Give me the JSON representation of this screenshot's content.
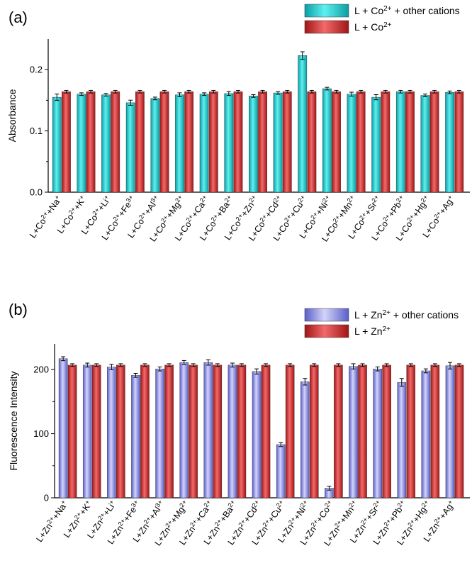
{
  "chart_data": [
    {
      "type": "bar",
      "panel_label": "(a)",
      "ylabel": "Absorbance",
      "ylim": [
        0,
        0.25
      ],
      "yticks": [
        "0.0",
        "0.1",
        "0.2"
      ],
      "yticks_values": [
        0,
        0.1,
        0.2
      ],
      "categories": [
        "L+Co2++Na+",
        "L+Co2++K+",
        "L+Co2++Li+",
        "L+Co2++Fe3+",
        "L+Co2++Al3+",
        "L+Co2++Mg2+",
        "L+Co2++Ca2+",
        "L+Co2++Ba2+",
        "L+Co2++Zn2+",
        "L+Co2++Cd2+",
        "L+Co2++Cu2+",
        "L+Co2++Ni2+",
        "L+Co2++Mn2+",
        "L+Co2++Sr2+",
        "L+Co2++Pb2+",
        "L+Co2++Hg2+",
        "L+Co2++Ag+"
      ],
      "category_parts": [
        [
          "L+Co",
          "2+",
          "+Na",
          "+"
        ],
        [
          "L+Co",
          "2+",
          "+K",
          "+"
        ],
        [
          "L+Co",
          "2+",
          "+Li",
          "+"
        ],
        [
          "L+Co",
          "2+",
          "+Fe",
          "3+"
        ],
        [
          "L+Co",
          "2+",
          "+Al",
          "3+"
        ],
        [
          "L+Co",
          "2+",
          "+Mg",
          "2+"
        ],
        [
          "L+Co",
          "2+",
          "+Ca",
          "2+"
        ],
        [
          "L+Co",
          "2+",
          "+Ba",
          "2+"
        ],
        [
          "L+Co",
          "2+",
          "+Zn",
          "2+"
        ],
        [
          "L+Co",
          "2+",
          "+Cd",
          "2+"
        ],
        [
          "L+Co",
          "2+",
          "+Cu",
          "2+"
        ],
        [
          "L+Co",
          "2+",
          "+Ni",
          "2+"
        ],
        [
          "L+Co",
          "2+",
          "+Mn",
          "2+"
        ],
        [
          "L+Co",
          "2+",
          "+Sr",
          "2+"
        ],
        [
          "L+Co",
          "2+",
          "+Pb",
          "2+"
        ],
        [
          "L+Co",
          "2+",
          "+Hg",
          "2+"
        ],
        [
          "L+Co",
          "2+",
          "+Ag",
          "+"
        ]
      ],
      "series": [
        {
          "name": "L + Co2+ + other cations",
          "legend_parts": [
            "L + Co",
            "2+",
            " + other cations"
          ],
          "color": "#1fd3d3",
          "values": [
            0.155,
            0.16,
            0.159,
            0.146,
            0.153,
            0.159,
            0.16,
            0.161,
            0.157,
            0.162,
            0.223,
            0.169,
            0.16,
            0.155,
            0.164,
            0.158,
            0.163
          ],
          "errors": [
            0.004,
            0.001,
            0.001,
            0.003,
            0.001,
            0.002,
            0.001,
            0.002,
            0.001,
            0.001,
            0.005,
            0.001,
            0.002,
            0.003,
            0.001,
            0.001,
            0.001
          ]
        },
        {
          "name": "L + Co2+",
          "legend_parts": [
            "L + Co",
            "2+",
            ""
          ],
          "color": "#e23b3b",
          "values": [
            0.164,
            0.164,
            0.164,
            0.164,
            0.164,
            0.164,
            0.164,
            0.164,
            0.164,
            0.164,
            0.164,
            0.164,
            0.164,
            0.164,
            0.164,
            0.164,
            0.164
          ],
          "errors": [
            0.001,
            0.001,
            0.001,
            0.001,
            0.001,
            0.001,
            0.001,
            0.001,
            0.001,
            0.001,
            0.001,
            0.001,
            0.001,
            0.001,
            0.001,
            0.001,
            0.001
          ]
        }
      ]
    },
    {
      "type": "bar",
      "panel_label": "(b)",
      "ylabel": "Fluorescence Intensity",
      "ylim": [
        0,
        240
      ],
      "yticks": [
        "0",
        "100",
        "200"
      ],
      "yticks_values": [
        0,
        100,
        200
      ],
      "categories": [
        "L+Zn2++Na+",
        "L+Zn2++K+",
        "L+Zn2++Li+",
        "L+Zn2++Fe3+",
        "L+Zn2++Al3+",
        "L+Zn2++Mg2+",
        "L+Zn2++Ca2+",
        "L+Zn2++Ba2+",
        "L+Zn2++Cd2+",
        "L+Zn2++Cu2+",
        "L+Zn2++Ni2+",
        "L+Zn2++Co2+",
        "L+Zn2++Mn2+",
        "L+Zn2++Sr2+",
        "L+Zn2++Pb2+",
        "L+Zn2++Hg2+",
        "L+Zn2++Ag+"
      ],
      "category_parts": [
        [
          "L+Zn",
          "2+",
          "+Na",
          "+"
        ],
        [
          "L+Zn",
          "2+",
          "+K",
          "+"
        ],
        [
          "L+Zn",
          "2+",
          "+Li",
          "+"
        ],
        [
          "L+Zn",
          "2+",
          "+Fe",
          "3+"
        ],
        [
          "L+Zn",
          "2+",
          "+Al",
          "3+"
        ],
        [
          "L+Zn",
          "2+",
          "+Mg",
          "2+"
        ],
        [
          "L+Zn",
          "2+",
          "+Ca",
          "2+"
        ],
        [
          "L+Zn",
          "2+",
          "+Ba",
          "2+"
        ],
        [
          "L+Zn",
          "2+",
          "+Cd",
          "2+"
        ],
        [
          "L+Zn",
          "2+",
          "+Cu",
          "2+"
        ],
        [
          "L+Zn",
          "2+",
          "+Ni",
          "2+"
        ],
        [
          "L+Zn",
          "2+",
          "+Co",
          "2+"
        ],
        [
          "L+Zn",
          "2+",
          "+Mn",
          "2+"
        ],
        [
          "L+Zn",
          "2+",
          "+Sr",
          "2+"
        ],
        [
          "L+Zn",
          "2+",
          "+Pb",
          "2+"
        ],
        [
          "L+Zn",
          "2+",
          "+Hg",
          "2+"
        ],
        [
          "L+Zn",
          "2+",
          "+Ag",
          "+"
        ]
      ],
      "series": [
        {
          "name": "L + Zn2+ + other cations",
          "legend_parts": [
            "L + Zn",
            "2+",
            " + other cations"
          ],
          "color": "#8d8fe6",
          "values": [
            217,
            207,
            204,
            191,
            201,
            211,
            211,
            207,
            197,
            83,
            181,
            15,
            205,
            201,
            180,
            198,
            206
          ],
          "errors": [
            2,
            2,
            3,
            2,
            2,
            2,
            3,
            2,
            3,
            2,
            4,
            2,
            3,
            2,
            5,
            2,
            4
          ]
        },
        {
          "name": "L + Zn2+",
          "legend_parts": [
            "L + Zn",
            "2+",
            ""
          ],
          "color": "#e02b2b",
          "values": [
            207,
            207,
            207,
            207,
            207,
            207,
            207,
            207,
            207,
            207,
            207,
            207,
            207,
            207,
            207,
            207,
            207
          ],
          "errors": [
            1,
            1,
            1,
            1,
            1,
            1,
            1,
            1,
            1,
            1,
            1,
            1,
            1,
            1,
            1,
            1,
            1
          ]
        }
      ]
    }
  ]
}
